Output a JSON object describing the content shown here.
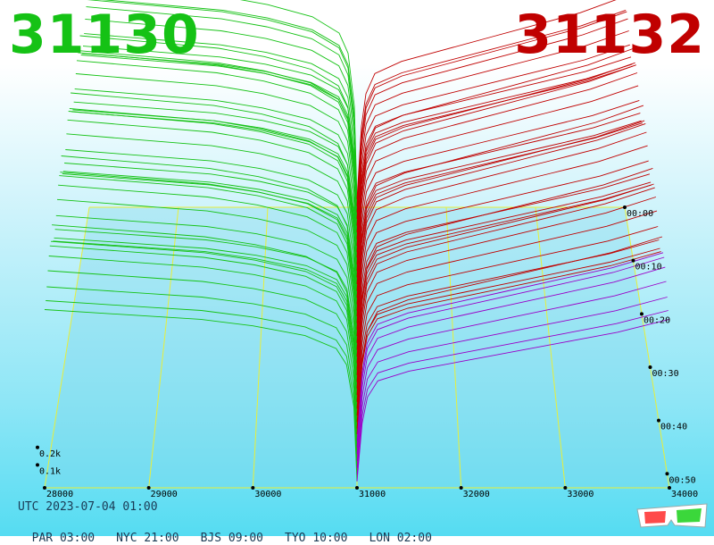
{
  "header": {
    "bid_price": "31130",
    "ask_price": "31132"
  },
  "footer": {
    "utc_label": "UTC 2023-07-04 01:00",
    "timezones": [
      "PAR 03:00",
      "NYC 21:00",
      "BJS 09:00",
      "TYO 10:00",
      "LON 02:00"
    ]
  },
  "colors": {
    "bid": "#15c215",
    "ask": "#c00000",
    "grid": "#e8ef3a",
    "depth_line": "#9a00c8"
  },
  "chart_data": {
    "type": "area",
    "title": "",
    "x_ticks": [
      "28000",
      "29000",
      "30000",
      "31000",
      "32000",
      "33000",
      "34000"
    ],
    "xlim": [
      28000,
      34000
    ],
    "z_ticks": [
      "0.1k",
      "0.2k"
    ],
    "zlim": [
      0,
      0.6
    ],
    "time_ticks": [
      "00:00",
      "00:10",
      "00:20",
      "00:30",
      "00:40",
      "00:50"
    ],
    "series": [
      {
        "name": "31130",
        "side": "bid",
        "price": [
          28000,
          28500,
          29000,
          29500,
          30000,
          30500,
          30800,
          30900,
          30970,
          31000
        ],
        "cum_volume": [
          0.55,
          0.54,
          0.53,
          0.52,
          0.5,
          0.47,
          0.43,
          0.38,
          0.25,
          0.02
        ]
      },
      {
        "name": "31132",
        "side": "ask",
        "price": [
          31000,
          31050,
          31100,
          31200,
          31500,
          32000,
          32500,
          33000,
          33500,
          34000
        ],
        "cum_volume": [
          0.02,
          0.2,
          0.28,
          0.33,
          0.36,
          0.39,
          0.42,
          0.45,
          0.48,
          0.52
        ]
      }
    ],
    "grid": true
  }
}
